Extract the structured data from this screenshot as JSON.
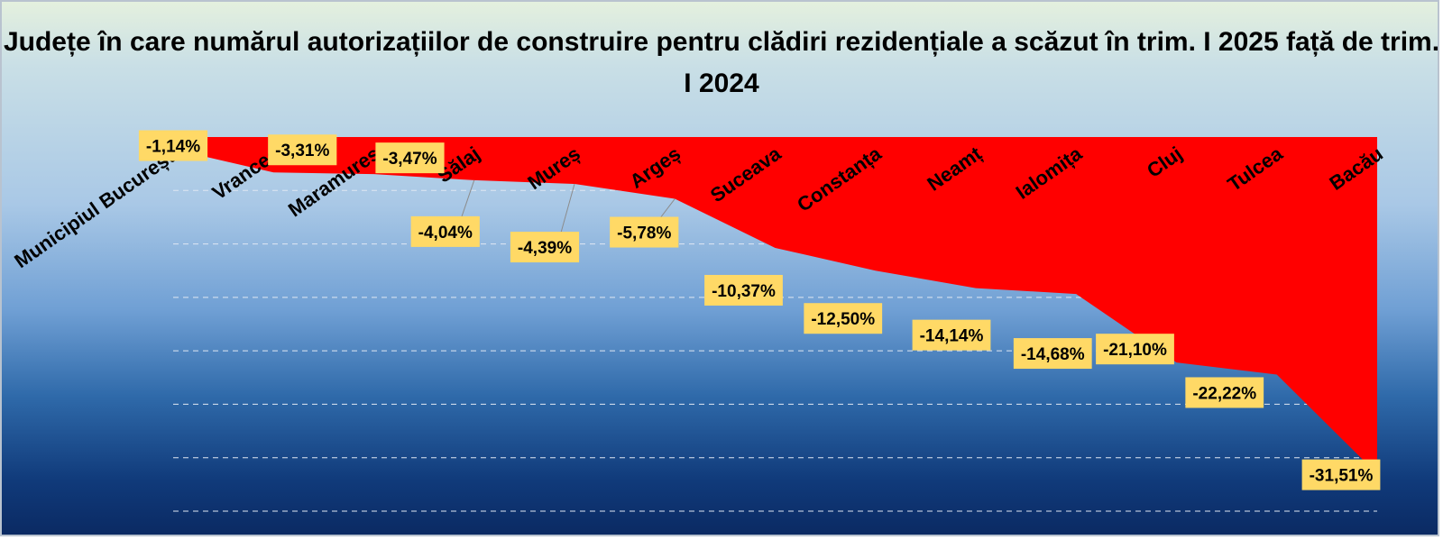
{
  "chart_data": {
    "type": "area",
    "title": "Județe în care numărul autorizațiilor de construire pentru clădiri rezidențiale a scăzut în trim. I 2025 față de trim. I 2024",
    "categories": [
      "Municipiul București",
      "Vrancea",
      "Maramureș",
      "Sălaj",
      "Mureș",
      "Argeș",
      "Suceava",
      "Constanța",
      "Neamț",
      "Ialomița",
      "Cluj",
      "Tulcea",
      "Bacău"
    ],
    "values": [
      -1.14,
      -3.31,
      -3.47,
      -4.04,
      -4.39,
      -5.78,
      -10.37,
      -12.5,
      -14.14,
      -14.68,
      -21.1,
      -22.22,
      -31.51
    ],
    "data_labels": [
      "-1,14%",
      "-3,31%",
      "-3,47%",
      "-4,04%",
      "-4,39%",
      "-5,78%",
      "-10,37%",
      "-12,50%",
      "-14,14%",
      "-14,68%",
      "-21,10%",
      "-22,22%",
      "-31,51%"
    ],
    "xlabel": "",
    "ylabel": "",
    "ylim": [
      -35,
      0
    ],
    "grid": true,
    "legend": "none",
    "colors": {
      "area_fill": "#ff0000",
      "label_box": "#ffd966",
      "gridline": "#dfe7f2"
    }
  }
}
